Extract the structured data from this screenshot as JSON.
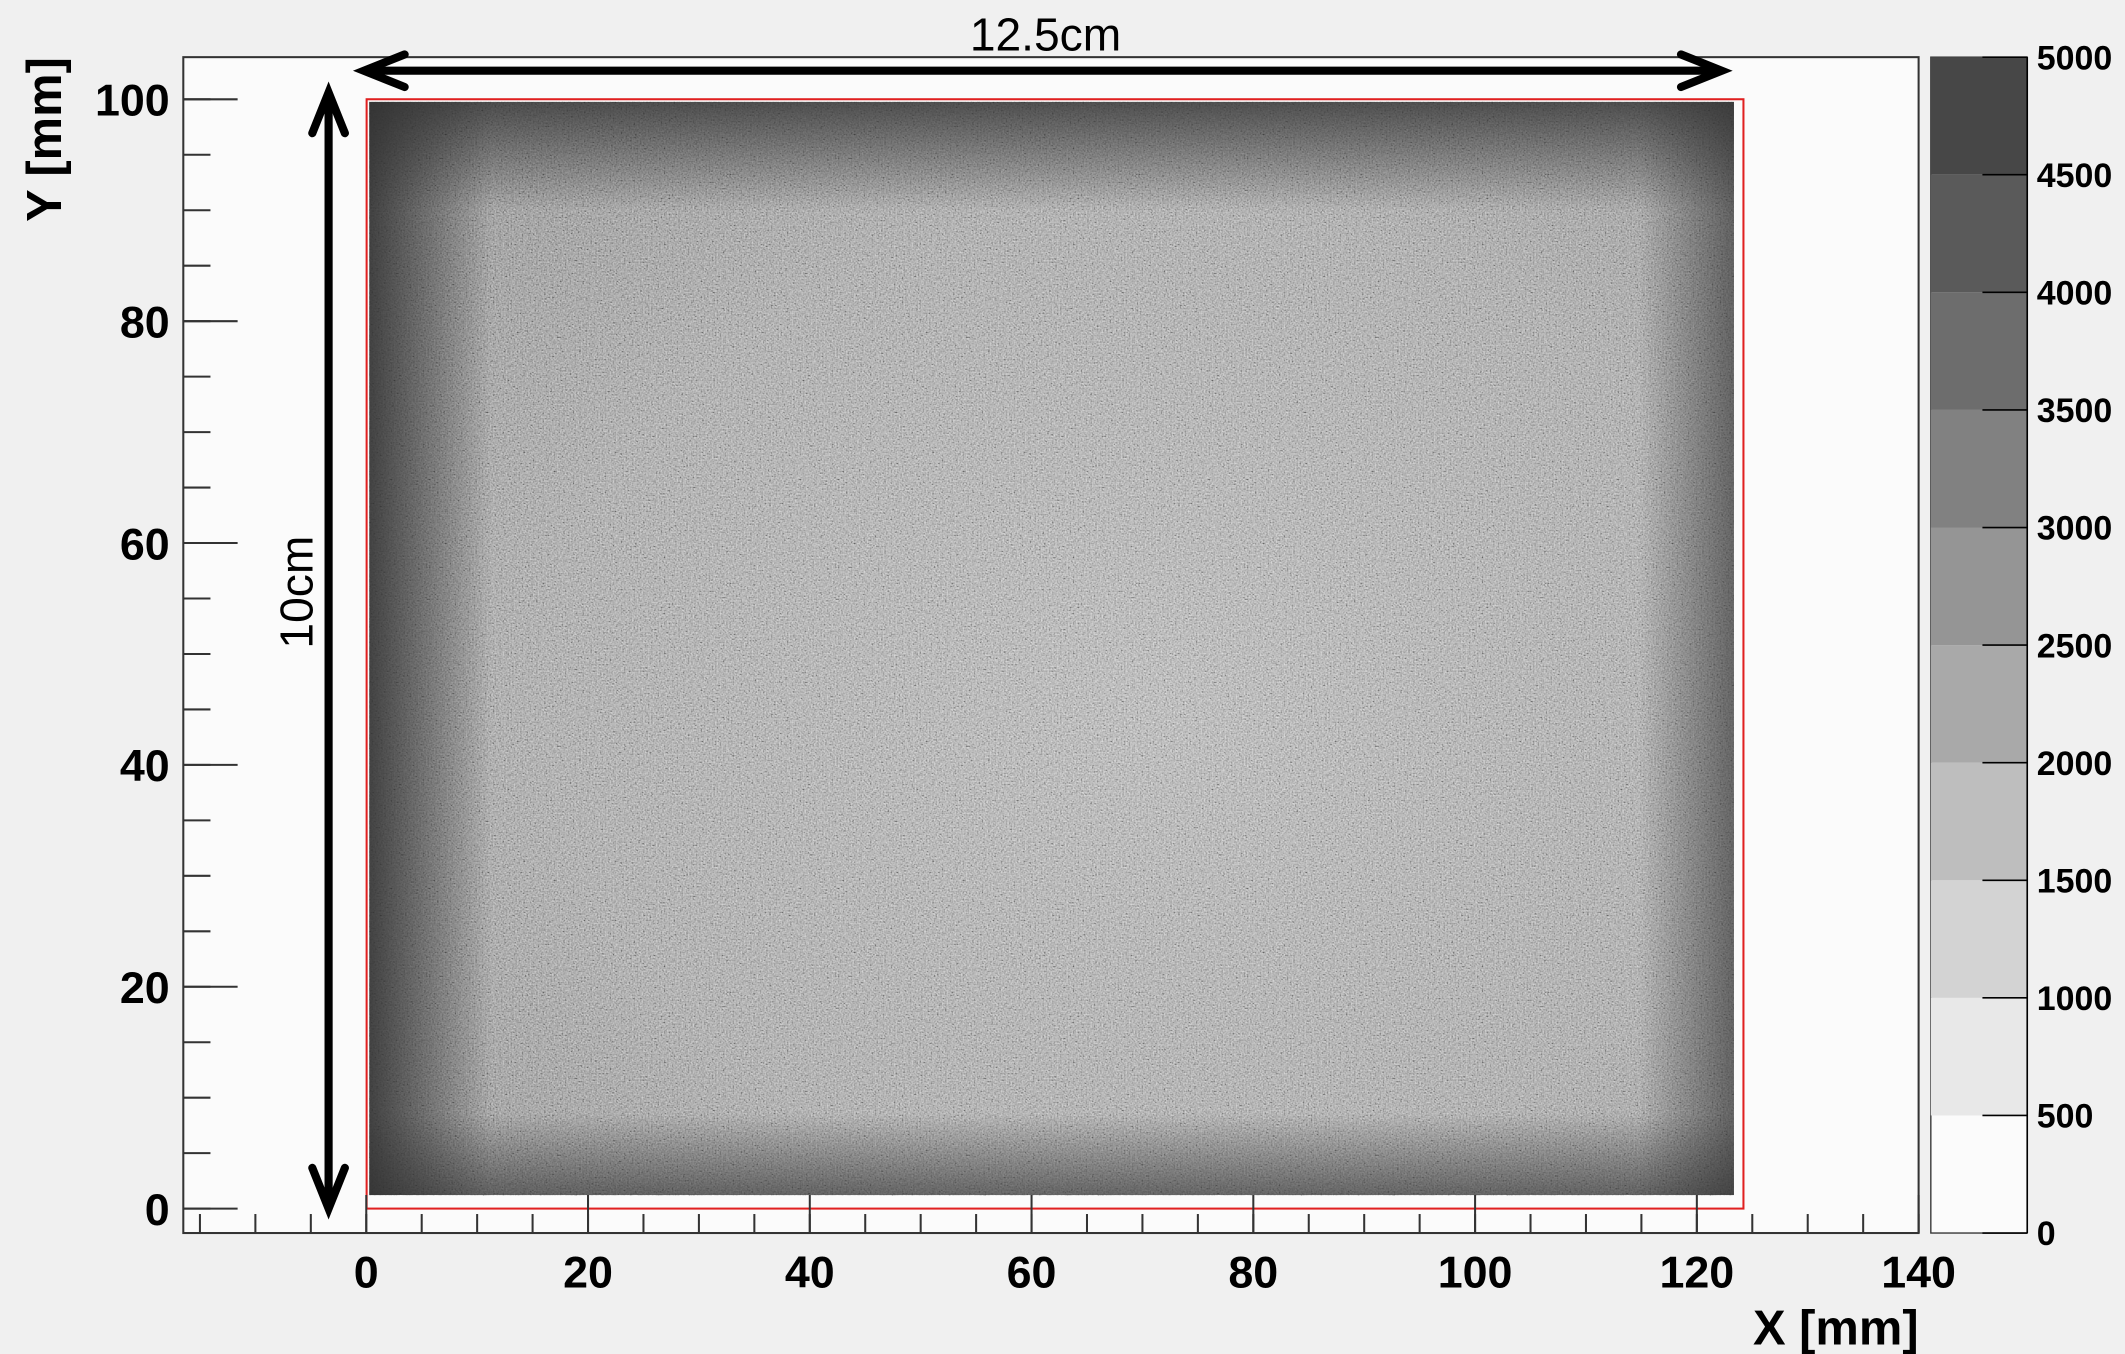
{
  "chart_data": {
    "type": "heatmap",
    "xlabel": "X [mm]",
    "ylabel": "Y [mm]",
    "xlim": [
      -16.5,
      140
    ],
    "xticks": [
      0,
      20,
      40,
      60,
      80,
      100,
      120,
      140
    ],
    "ylim": [
      -2.2,
      103.8
    ],
    "yticks": [
      0,
      20,
      40,
      60,
      80,
      100
    ],
    "colorbar": {
      "zlim": [
        0,
        5000
      ],
      "ticks": [
        0,
        500,
        1000,
        1500,
        2000,
        2500,
        3000,
        3500,
        4000,
        4500,
        5000
      ],
      "palette": [
        "#e8e8e8",
        "#d3d3d3",
        "#bebebe",
        "#a9a9a9",
        "#959595",
        "#818181",
        "#6d6d6d",
        "#5a5a5a",
        "#474747"
      ]
    },
    "annotations": [
      "12.5cm",
      "10cm"
    ]
  }
}
